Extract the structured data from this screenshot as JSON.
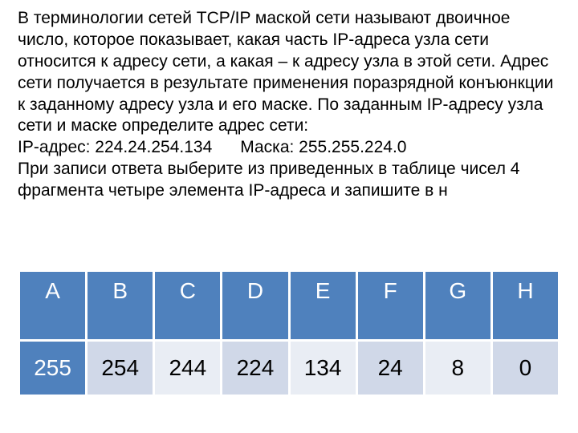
{
  "text": {
    "paragraph": "В терминологии сетей TCP/IP маской сети называют двоичное число, которое показывает, какая часть IP-адреса узла сети относится к адресу сети, а какая – к адресу узла в этой сети. Адрес сети получается в результате применения поразрядной конъюнкции к заданному адресу узла и его маске. По заданным IP-адресу узла сети и маске определите адрес сети:\nIP-адрес: 224.24.254.134      Маска: 255.255.224.0\nПри записи ответа выберите из приведенных в таблице чисел 4 фрагмента четыре элемента IP-адреса и запишите в н"
  },
  "table": {
    "type": "table",
    "header_bg": "#4f81bd",
    "header_fg": "#ffffff",
    "border_color": "#ffffff",
    "cell_light_bg": "#d0d8e8",
    "cell_mid_bg": "#e9edf4",
    "accent_cell_bg": "#4f81bd",
    "accent_cell_fg": "#ffffff",
    "font_size_header": 28,
    "font_size_value": 28,
    "columns": [
      {
        "letter": "A",
        "value": "255",
        "value_style": "strong"
      },
      {
        "letter": "B",
        "value": "254",
        "value_style": "light"
      },
      {
        "letter": "C",
        "value": "244",
        "value_style": "mid"
      },
      {
        "letter": "D",
        "value": "224",
        "value_style": "light"
      },
      {
        "letter": "E",
        "value": "134",
        "value_style": "mid"
      },
      {
        "letter": "F",
        "value": "24",
        "value_style": "light"
      },
      {
        "letter": "G",
        "value": "8",
        "value_style": "mid"
      },
      {
        "letter": "H",
        "value": "0",
        "value_style": "light"
      }
    ]
  }
}
